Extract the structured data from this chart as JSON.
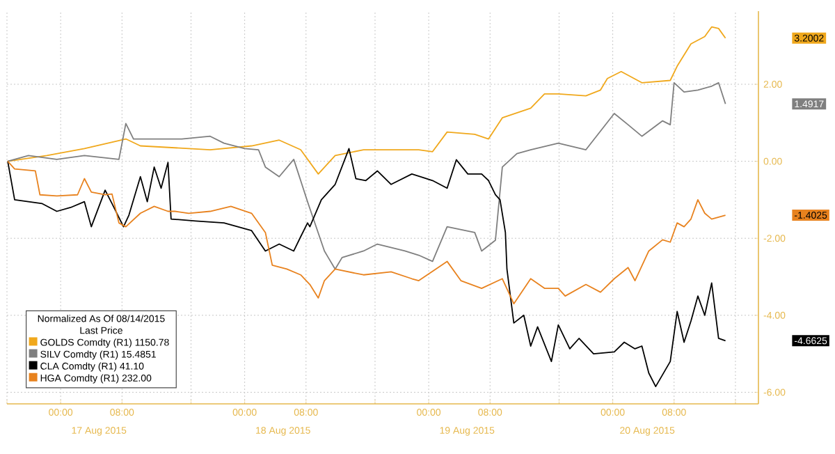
{
  "chart_data": {
    "type": "line",
    "xlim": [
      "2015-08-16T17:00",
      "2015-08-20T19:00"
    ],
    "ylim": [
      -6.3,
      3.9
    ],
    "xticks": [
      {
        "value": "2015-08-16T17:00",
        "label": null
      },
      {
        "value": "2015-08-17T00:00",
        "label": "00:00"
      },
      {
        "value": "2015-08-17T08:00",
        "label": "08:00"
      },
      {
        "value": "2015-08-17T17:00",
        "label": null
      },
      {
        "value": "2015-08-18T00:00",
        "label": "00:00"
      },
      {
        "value": "2015-08-18T08:00",
        "label": "08:00"
      },
      {
        "value": "2015-08-18T17:00",
        "label": null
      },
      {
        "value": "2015-08-19T00:00",
        "label": "00:00"
      },
      {
        "value": "2015-08-19T08:00",
        "label": "08:00"
      },
      {
        "value": "2015-08-19T17:00",
        "label": null
      },
      {
        "value": "2015-08-20T00:00",
        "label": "00:00"
      },
      {
        "value": "2015-08-20T08:00",
        "label": "08:00"
      },
      {
        "value": "2015-08-20T16:00",
        "label": null
      }
    ],
    "yticks": [
      {
        "value": 2,
        "label": "2.00"
      },
      {
        "value": 0,
        "label": "0.00"
      },
      {
        "value": -2,
        "label": "-2.00"
      },
      {
        "value": -4,
        "label": "-4.00"
      },
      {
        "value": -6,
        "label": "-6.00"
      }
    ],
    "grid": true,
    "legend": "bottom left",
    "legend_title": "Normalized As Of 08/14/2015",
    "annotations": [
      "Last Price",
      "17 Aug 2015",
      "18 Aug 2015",
      "19 Aug 2015",
      "20 Aug 2015",
      "3.2002",
      "1.4917",
      "-4.6625",
      "-1.4025"
    ],
    "series": [
      {
        "name": "GOLDS Comdty  (R1)  1150.78",
        "color": "#f0a81c",
        "x": [
          "2015-08-16T17:06",
          "2015-08-16T22:12",
          "2015-08-17T03:06",
          "2015-08-17T08:30",
          "2015-08-17T10:24",
          "2015-08-17T19:30",
          "2015-08-18T00:54",
          "2015-08-18T04:30",
          "2015-08-18T07:18",
          "2015-08-18T09:36",
          "2015-08-18T11:48",
          "2015-08-18T15:30",
          "2015-08-18T22:42",
          "2015-08-19T00:30",
          "2015-08-19T02:24",
          "2015-08-19T06:00",
          "2015-08-19T07:48",
          "2015-08-19T09:36",
          "2015-08-19T13:18",
          "2015-08-19T15:06",
          "2015-08-19T16:54",
          "2015-08-19T20:30",
          "2015-08-19T22:24",
          "2015-08-19T23:18",
          "2015-08-20T01:06",
          "2015-08-20T03:48",
          "2015-08-20T07:30",
          "2015-08-20T08:24",
          "2015-08-20T10:12",
          "2015-08-20T12:00",
          "2015-08-20T12:54",
          "2015-08-20T13:48",
          "2015-08-20T14:42"
        ],
        "values": [
          0,
          0.15,
          0.33,
          0.58,
          0.4,
          0.3,
          0.4,
          0.55,
          0.3,
          -0.33,
          0.15,
          0.3,
          0.3,
          0.25,
          0.76,
          0.7,
          0.58,
          1.13,
          1.38,
          1.75,
          1.75,
          1.7,
          1.85,
          2.15,
          2.33,
          2.04,
          2.1,
          2.47,
          3.05,
          3.24,
          3.49,
          3.45,
          3.2
        ]
      },
      {
        "name": "SILV Comdty  (R1)  15.4851",
        "color": "#7f7f7f",
        "x": [
          "2015-08-16T17:06",
          "2015-08-16T18:00",
          "2015-08-16T19:48",
          "2015-08-16T23:30",
          "2015-08-17T03:06",
          "2015-08-17T07:36",
          "2015-08-17T08:30",
          "2015-08-17T09:30",
          "2015-08-17T12:12",
          "2015-08-17T15:48",
          "2015-08-17T19:30",
          "2015-08-17T21:18",
          "2015-08-18T00:00",
          "2015-08-18T01:48",
          "2015-08-18T02:42",
          "2015-08-18T04:30",
          "2015-08-18T06:24",
          "2015-08-18T07:18",
          "2015-08-18T08:12",
          "2015-08-18T10:24",
          "2015-08-18T10:54",
          "2015-08-18T11:48",
          "2015-08-18T12:42",
          "2015-08-18T15:30",
          "2015-08-18T17:18",
          "2015-08-18T20:54",
          "2015-08-18T22:42",
          "2015-08-19T00:30",
          "2015-08-19T02:24",
          "2015-08-19T06:00",
          "2015-08-19T06:54",
          "2015-08-19T08:42",
          "2015-08-19T09:36",
          "2015-08-19T11:30",
          "2015-08-19T13:18",
          "2015-08-19T16:54",
          "2015-08-19T20:30",
          "2015-08-20T00:12",
          "2015-08-20T02:00",
          "2015-08-20T03:48",
          "2015-08-20T06:30",
          "2015-08-20T07:30",
          "2015-08-20T08:00",
          "2015-08-20T09:18",
          "2015-08-20T11:06",
          "2015-08-20T12:54",
          "2015-08-20T13:48",
          "2015-08-20T14:42"
        ],
        "values": [
          0,
          0.05,
          0.15,
          0.05,
          0.15,
          0.05,
          0.98,
          0.58,
          0.58,
          0.58,
          0.65,
          0.47,
          0.33,
          0.3,
          -0.15,
          -0.4,
          0.05,
          -0.5,
          -1.05,
          -2.33,
          -2.5,
          -2.8,
          -2.5,
          -2.33,
          -2.15,
          -2.33,
          -2.44,
          -2.6,
          -1.7,
          -1.85,
          -2.33,
          -2.05,
          -0.15,
          0.2,
          0.3,
          0.47,
          0.3,
          1.24,
          0.95,
          0.65,
          1.05,
          0.95,
          2.04,
          1.8,
          1.85,
          1.95,
          2.04,
          1.49
        ]
      },
      {
        "name": "CLA Comdty  (R1)  41.10",
        "color": "#000000",
        "x": [
          "2015-08-16T17:06",
          "2015-08-16T18:00",
          "2015-08-16T19:48",
          "2015-08-16T21:36",
          "2015-08-16T23:30",
          "2015-08-17T01:18",
          "2015-08-17T03:06",
          "2015-08-17T04:00",
          "2015-08-17T05:48",
          "2015-08-17T06:42",
          "2015-08-17T08:12",
          "2015-08-17T08:54",
          "2015-08-17T10:24",
          "2015-08-17T11:18",
          "2015-08-17T12:12",
          "2015-08-17T13:06",
          "2015-08-17T14:00",
          "2015-08-17T14:24",
          "2015-08-17T17:36",
          "2015-08-17T21:18",
          "2015-08-18T00:54",
          "2015-08-18T02:42",
          "2015-08-18T04:30",
          "2015-08-18T06:24",
          "2015-08-18T07:18",
          "2015-08-18T08:12",
          "2015-08-18T08:30",
          "2015-08-18T10:00",
          "2015-08-18T11:48",
          "2015-08-18T13:36",
          "2015-08-18T14:30",
          "2015-08-18T15:48",
          "2015-08-18T17:18",
          "2015-08-18T19:06",
          "2015-08-18T21:48",
          "2015-08-19T00:30",
          "2015-08-19T02:24",
          "2015-08-19T03:36",
          "2015-08-19T05:06",
          "2015-08-19T06:54",
          "2015-08-19T07:48",
          "2015-08-19T08:42",
          "2015-08-19T09:18",
          "2015-08-19T10:00",
          "2015-08-19T10:12",
          "2015-08-19T11:06",
          "2015-08-19T12:24",
          "2015-08-19T13:18",
          "2015-08-19T14:12",
          "2015-08-19T16:00",
          "2015-08-19T16:54",
          "2015-08-19T18:24",
          "2015-08-19T19:36",
          "2015-08-19T21:30",
          "2015-08-20T00:12",
          "2015-08-20T01:30",
          "2015-08-20T02:54",
          "2015-08-20T03:48",
          "2015-08-20T04:42",
          "2015-08-20T05:36",
          "2015-08-20T07:30",
          "2015-08-20T08:24",
          "2015-08-20T09:18",
          "2015-08-20T10:12",
          "2015-08-20T11:06",
          "2015-08-20T12:00",
          "2015-08-20T12:54",
          "2015-08-20T13:48",
          "2015-08-20T14:42"
        ],
        "values": [
          0,
          -1.0,
          -1.05,
          -1.1,
          -1.3,
          -1.2,
          -1.05,
          -1.7,
          -0.75,
          -1.1,
          -1.7,
          -1.4,
          -0.4,
          -1.05,
          -0.15,
          -0.7,
          -0.03,
          -1.5,
          -1.55,
          -1.6,
          -1.8,
          -2.33,
          -2.15,
          -2.33,
          -1.96,
          -1.6,
          -1.7,
          -1.0,
          -0.6,
          0.33,
          -0.45,
          -0.5,
          -0.25,
          -0.6,
          -0.33,
          -0.5,
          -0.7,
          0.04,
          -0.33,
          -0.33,
          -0.5,
          -0.87,
          -1.0,
          -1.85,
          -2.8,
          -4.2,
          -4.0,
          -4.8,
          -4.3,
          -5.2,
          -4.25,
          -4.87,
          -4.6,
          -5.0,
          -4.95,
          -4.7,
          -4.87,
          -4.8,
          -5.5,
          -5.85,
          -5.2,
          -3.9,
          -4.7,
          -4.15,
          -3.5,
          -4.0,
          -3.16,
          -4.6,
          -4.66
        ]
      },
      {
        "name": "HGA Comdty  (R1)  232.00",
        "color": "#e8821e",
        "x": [
          "2015-08-16T17:06",
          "2015-08-16T18:00",
          "2015-08-16T20:42",
          "2015-08-16T21:18",
          "2015-08-16T23:30",
          "2015-08-17T02:12",
          "2015-08-17T03:06",
          "2015-08-17T04:00",
          "2015-08-17T05:48",
          "2015-08-17T06:42",
          "2015-08-17T07:36",
          "2015-08-17T08:30",
          "2015-08-17T10:24",
          "2015-08-17T12:12",
          "2015-08-17T14:00",
          "2015-08-17T14:54",
          "2015-08-17T16:42",
          "2015-08-17T19:30",
          "2015-08-17T22:12",
          "2015-08-18T00:54",
          "2015-08-18T02:42",
          "2015-08-18T03:36",
          "2015-08-18T05:30",
          "2015-08-18T07:18",
          "2015-08-18T08:30",
          "2015-08-18T09:36",
          "2015-08-18T10:24",
          "2015-08-18T11:48",
          "2015-08-18T15:30",
          "2015-08-18T19:06",
          "2015-08-18T21:48",
          "2015-08-18T22:42",
          "2015-08-19T02:24",
          "2015-08-19T04:12",
          "2015-08-19T06:54",
          "2015-08-19T09:36",
          "2015-08-19T11:06",
          "2015-08-19T13:18",
          "2015-08-19T15:06",
          "2015-08-19T16:54",
          "2015-08-19T17:48",
          "2015-08-19T20:30",
          "2015-08-19T22:24",
          "2015-08-20T00:12",
          "2015-08-20T02:00",
          "2015-08-20T02:54",
          "2015-08-20T04:42",
          "2015-08-20T06:30",
          "2015-08-20T07:30",
          "2015-08-20T08:24",
          "2015-08-20T09:18",
          "2015-08-20T10:12",
          "2015-08-20T11:06",
          "2015-08-20T12:00",
          "2015-08-20T12:54",
          "2015-08-20T13:48",
          "2015-08-20T14:42"
        ],
        "values": [
          0,
          -0.2,
          -0.25,
          -0.87,
          -0.9,
          -0.87,
          -0.45,
          -0.8,
          -0.87,
          -0.85,
          -1.6,
          -1.7,
          -1.35,
          -1.17,
          -1.3,
          -1.3,
          -1.35,
          -1.3,
          -1.17,
          -1.35,
          -1.85,
          -2.7,
          -2.8,
          -2.95,
          -3.2,
          -3.55,
          -3.1,
          -2.8,
          -2.95,
          -2.87,
          -3.05,
          -3.1,
          -2.6,
          -3.1,
          -3.3,
          -3.05,
          -3.7,
          -3.05,
          -3.3,
          -3.3,
          -3.5,
          -3.2,
          -3.4,
          -3.05,
          -2.76,
          -3.1,
          -2.33,
          -2.04,
          -2.1,
          -1.6,
          -1.7,
          -1.5,
          -1.0,
          -1.35,
          -1.5,
          -1.45,
          -1.4
        ]
      }
    ]
  }
}
